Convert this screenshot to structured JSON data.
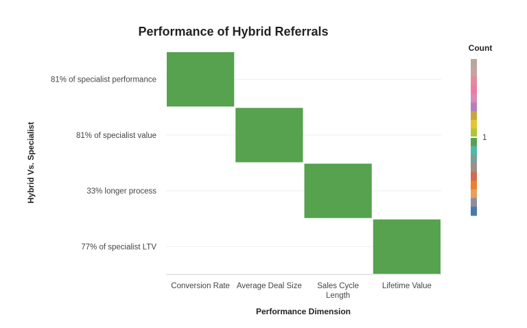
{
  "chart_data": {
    "type": "heatmap",
    "title": "Performance of Hybrid Referrals",
    "xlabel": "Performance Dimension",
    "ylabel": "Hybrid Vs. Specialist",
    "x_categories": [
      [
        "Conversion Rate"
      ],
      [
        "Average Deal Size"
      ],
      [
        "Sales Cycle",
        "Length"
      ],
      [
        "Lifetime Value"
      ]
    ],
    "y_categories": [
      "81% of specialist performance",
      "81% of specialist value",
      "33% longer process",
      "77% of specialist LTV"
    ],
    "cells": [
      {
        "x": "Conversion Rate",
        "y": "81% of specialist performance",
        "value": 1
      },
      {
        "x": "Average Deal Size",
        "y": "81% of specialist value",
        "value": 1
      },
      {
        "x": "Sales Cycle Length",
        "y": "33% longer process",
        "value": 1
      },
      {
        "x": "Lifetime Value",
        "y": "77% of specialist LTV",
        "value": 1
      }
    ],
    "cell_color": "#56a24f",
    "legend": {
      "title": "Count",
      "ticks": [
        "1"
      ],
      "colors": [
        "#b8a79a",
        "#c6a3a3",
        "#e58a9a",
        "#f07ba0",
        "#d98ab8",
        "#b47fbf",
        "#c7a63e",
        "#e3c72a",
        "#b0c43a",
        "#56a24f",
        "#4fb9a7",
        "#7a9e9a",
        "#9e8f8a",
        "#d46b4f",
        "#ee7f2a",
        "#e89f57",
        "#8a8fa0",
        "#4a78b0"
      ]
    }
  }
}
